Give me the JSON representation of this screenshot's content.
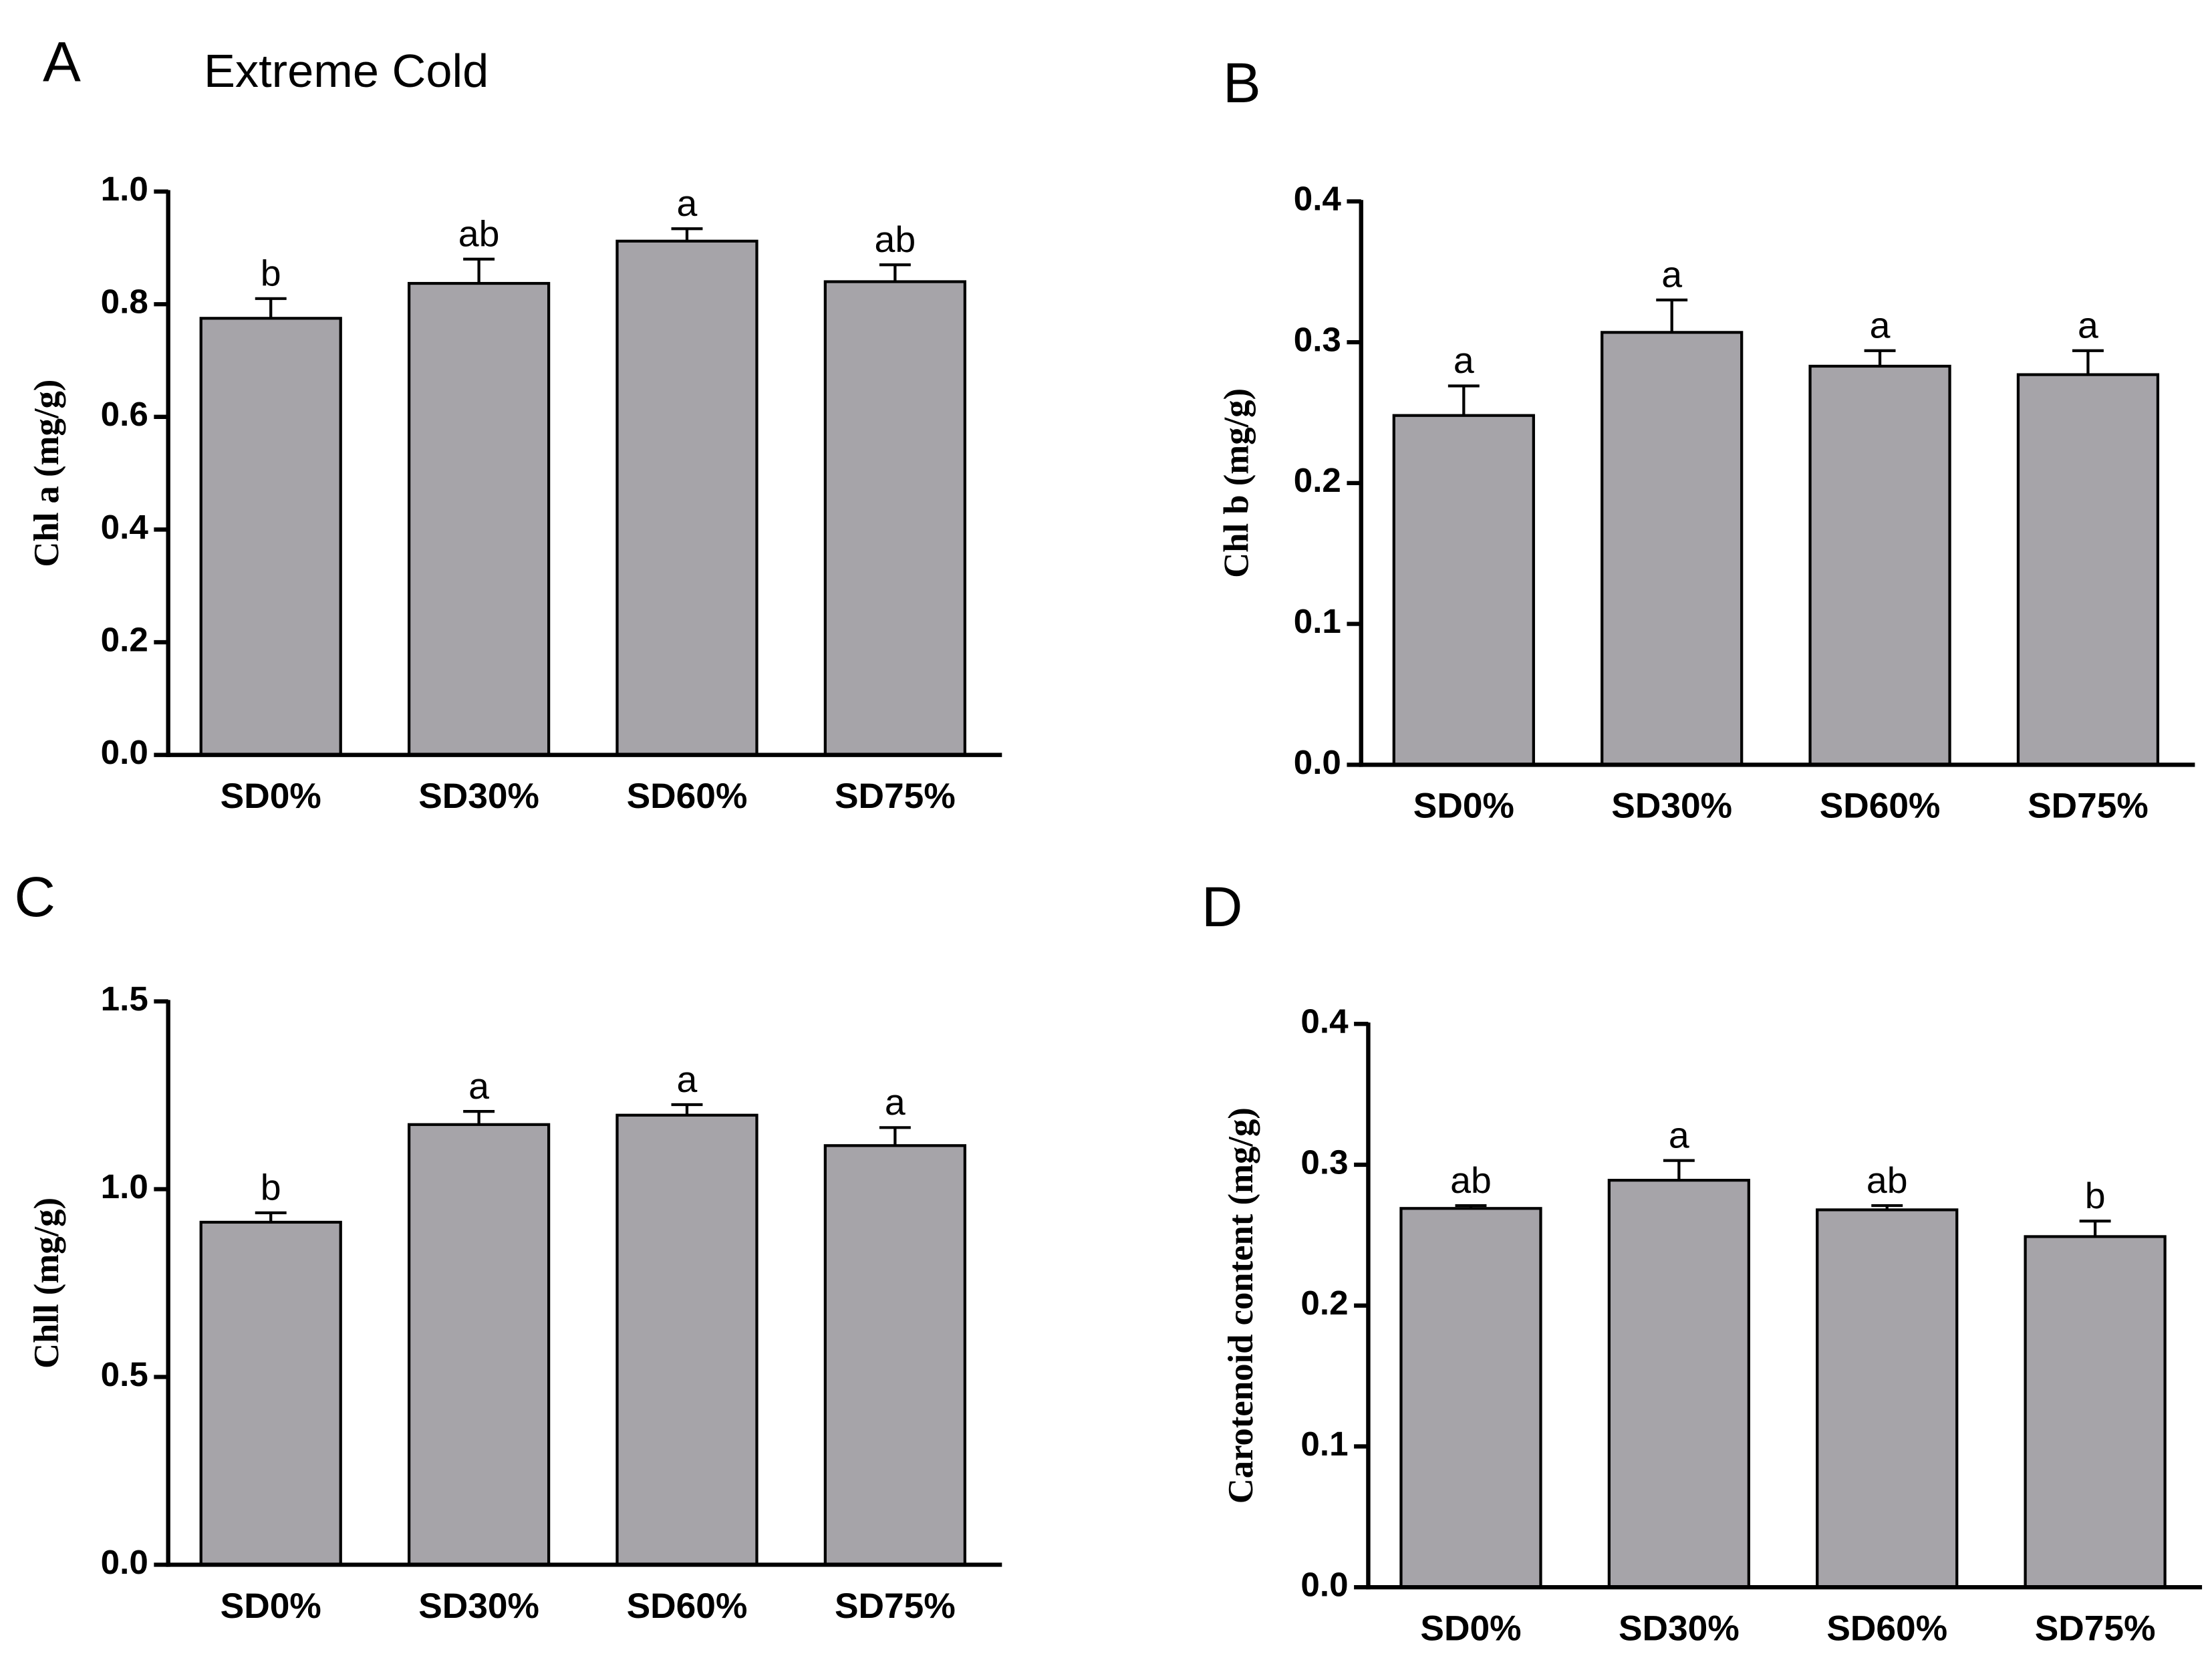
{
  "chart_data": [
    {
      "type": "bar",
      "panel": "A",
      "title": "Extreme Cold",
      "y_label": "Chl a (mg/g)",
      "categories": [
        "SD0%",
        "SD30%",
        "SD60%",
        "SD75%"
      ],
      "values": [
        0.775,
        0.837,
        0.912,
        0.84
      ],
      "errors": [
        0.035,
        0.043,
        0.022,
        0.03
      ],
      "letters": [
        "b",
        "ab",
        "a",
        "ab"
      ],
      "color": "#a6a4a9",
      "ylim": [
        0,
        1
      ],
      "yticks": [
        {
          "value": 0,
          "label": "0.0"
        },
        0.2,
        0.4,
        0.6,
        0.8,
        {
          "value": 1,
          "label": "1.0"
        }
      ]
    },
    {
      "type": "bar",
      "panel": "B",
      "y_label": "Chl b (mg/g)",
      "categories": [
        "SD0%",
        "SD30%",
        "SD60%",
        "SD75%"
      ],
      "values": [
        0.248,
        0.307,
        0.283,
        0.277
      ],
      "errors": [
        0.021,
        0.023,
        0.011,
        0.017
      ],
      "letters": [
        "a",
        "a",
        "a",
        "a"
      ],
      "color": "#a6a4a9",
      "ylim": [
        0,
        0.4
      ],
      "yticks": [
        {
          "value": 0,
          "label": "0.0"
        },
        0.1,
        0.2,
        0.3,
        0.4
      ]
    },
    {
      "type": "bar",
      "panel": "C",
      "y_label": "Chll (mg/g)",
      "categories": [
        "SD0%",
        "SD30%",
        "SD60%",
        "SD75%"
      ],
      "values": [
        0.912,
        1.172,
        1.197,
        1.116
      ],
      "errors": [
        0.025,
        0.035,
        0.028,
        0.048
      ],
      "letters": [
        "b",
        "a",
        "a",
        "a"
      ],
      "color": "#a6a4a9",
      "ylim": [
        0,
        1.5
      ],
      "yticks": [
        {
          "value": 0,
          "label": "0.0"
        },
        0.5,
        {
          "value": 1,
          "label": "1.0"
        },
        1.5
      ]
    },
    {
      "type": "bar",
      "panel": "D",
      "y_label": "Carotenoid content (mg/g)",
      "categories": [
        "SD0%",
        "SD30%",
        "SD60%",
        "SD75%"
      ],
      "values": [
        0.269,
        0.289,
        0.268,
        0.249
      ],
      "errors": [
        0.002,
        0.014,
        0.003,
        0.011
      ],
      "letters": [
        "ab",
        "a",
        "ab",
        "b"
      ],
      "color": "#a6a4a9",
      "ylim": [
        0,
        0.4
      ],
      "yticks": [
        {
          "value": 0,
          "label": "0.0"
        },
        0.1,
        0.2,
        0.3,
        0.4
      ]
    }
  ]
}
